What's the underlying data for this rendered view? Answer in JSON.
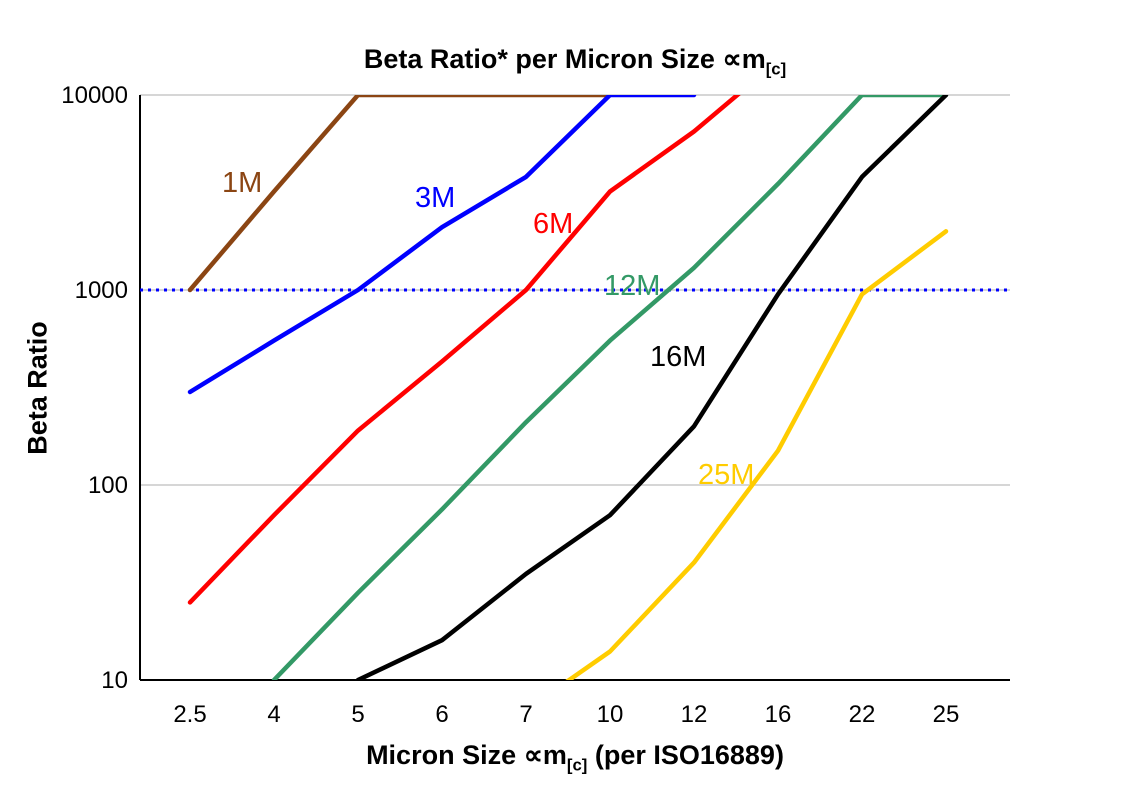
{
  "title": {
    "main": "Beta Ratio* per Micron Size ∝m",
    "sub": "[c]"
  },
  "x_axis_label": {
    "pre": "Micron Size ∝m",
    "sub": "[c]",
    "post": " (per ISO16889)"
  },
  "y_axis_label": "Beta Ratio",
  "chart_data": {
    "type": "line",
    "title": "Beta Ratio* per Micron Size ∝m[c]",
    "xlabel": "Micron Size ∝m[c] (per ISO16889)",
    "ylabel": "Beta Ratio",
    "x_categories": [
      "2.5",
      "4",
      "5",
      "6",
      "7",
      "10",
      "12",
      "16",
      "22",
      "25"
    ],
    "y_scale": "log",
    "ylim": [
      10,
      10000
    ],
    "y_ticks": [
      "10",
      "100",
      "1000",
      "10000"
    ],
    "grid": "horizontal-decades",
    "legend_position": "inline-labels",
    "reference_line": {
      "y": 1000,
      "color": "#0000ff",
      "style": "dotted"
    },
    "series": [
      {
        "name": "1M",
        "color": "#8B4513",
        "points": [
          [
            0,
            1000
          ],
          [
            1,
            3200
          ],
          [
            2,
            10000
          ],
          [
            5,
            10000
          ]
        ]
      },
      {
        "name": "3M",
        "color": "#0000FF",
        "points": [
          [
            0,
            300
          ],
          [
            1,
            550
          ],
          [
            2,
            1000
          ],
          [
            3,
            2100
          ],
          [
            4,
            3800
          ],
          [
            5,
            10000
          ],
          [
            6,
            10000
          ]
        ]
      },
      {
        "name": "6M",
        "color": "#FF0000",
        "points": [
          [
            0,
            25
          ],
          [
            1,
            70
          ],
          [
            2,
            190
          ],
          [
            3,
            430
          ],
          [
            4,
            1000
          ],
          [
            5,
            3200
          ],
          [
            6,
            6500
          ],
          [
            7,
            15000
          ]
        ]
      },
      {
        "name": "12M",
        "color": "#339966",
        "points": [
          [
            1,
            10
          ],
          [
            2,
            28
          ],
          [
            3,
            75
          ],
          [
            4,
            210
          ],
          [
            5,
            550
          ],
          [
            6,
            1300
          ],
          [
            7,
            3500
          ],
          [
            8,
            10000
          ],
          [
            9,
            10000
          ]
        ]
      },
      {
        "name": "16M",
        "color": "#000000",
        "points": [
          [
            2,
            10
          ],
          [
            3,
            16
          ],
          [
            4,
            35
          ],
          [
            5,
            70
          ],
          [
            6,
            200
          ],
          [
            7,
            950
          ],
          [
            8,
            3800
          ],
          [
            9,
            10000
          ]
        ]
      },
      {
        "name": "25M",
        "color": "#FFCC00",
        "points": [
          [
            4,
            7
          ],
          [
            5,
            14
          ],
          [
            6,
            40
          ],
          [
            7,
            150
          ],
          [
            8,
            950
          ],
          [
            9,
            2000
          ]
        ]
      }
    ]
  }
}
